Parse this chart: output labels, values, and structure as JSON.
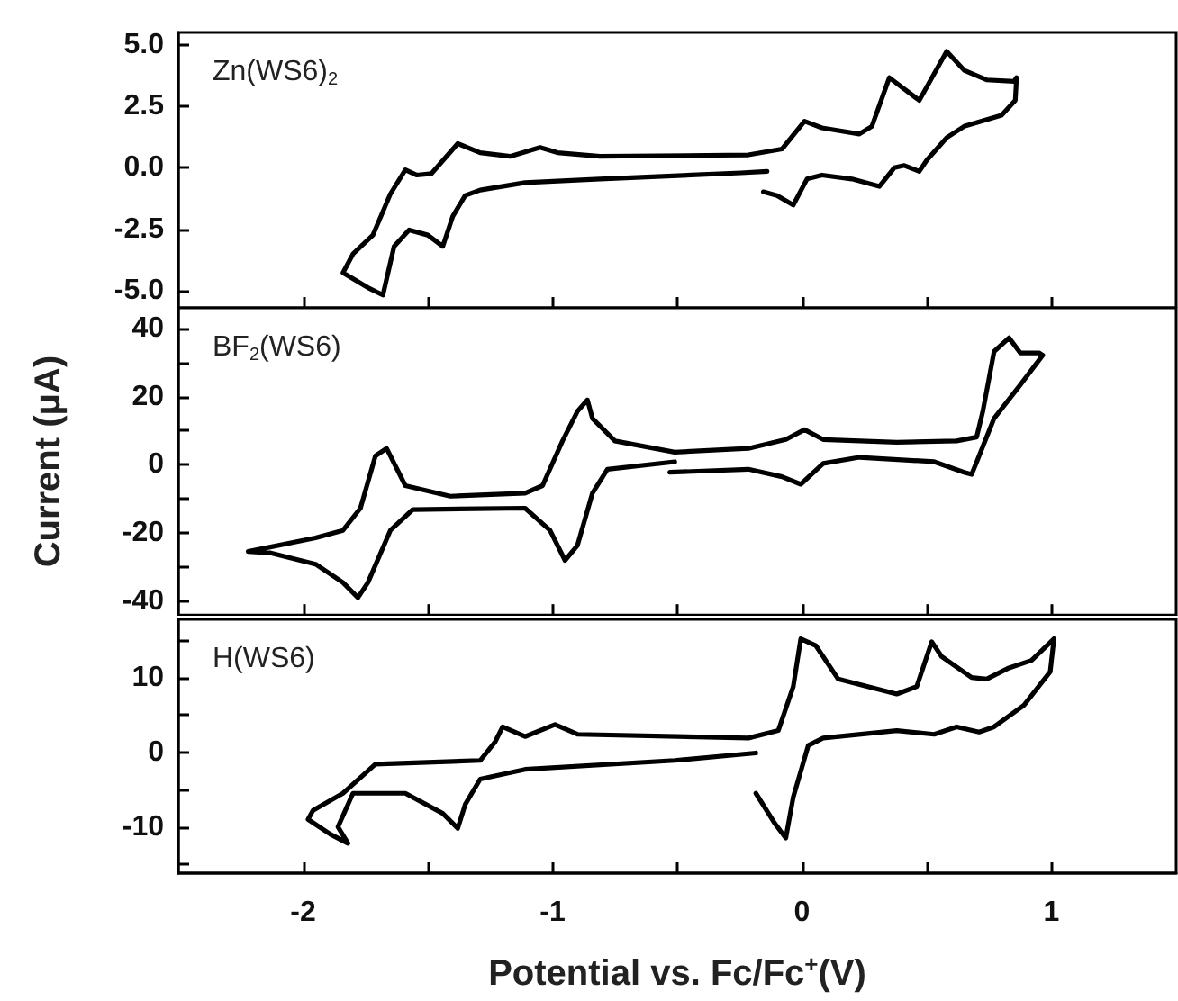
{
  "chart_data": [
    {
      "type": "line",
      "xlim": [
        -2.5,
        1.5
      ],
      "xticks": [
        -2,
        -1,
        0,
        1,
        {
          "value": -1.5,
          "label": null
        },
        {
          "value": -0.5,
          "label": null
        },
        {
          "value": 0.5,
          "label": null
        }
      ],
      "ylim": [
        -5.7,
        5.5
      ],
      "yticks": [
        {
          "value": -5,
          "label": "-5.0"
        },
        {
          "value": -2.5,
          "label": "-2.5"
        },
        {
          "value": 0,
          "label": "0.0"
        },
        {
          "value": 2.5,
          "label": "2.5"
        },
        {
          "value": 5,
          "label": "5.0"
        }
      ],
      "tick_labels": "y",
      "series": [
        {
          "name": "Zn(WS6)$_{2}$",
          "color": "#000000",
          "x": [
            -0.14,
            -0.245,
            -0.81,
            -1.11,
            -1.29,
            -1.35,
            -1.4,
            -1.44,
            -1.5,
            -1.575,
            -1.635,
            -1.68,
            -1.74,
            -1.84,
            -1.8,
            -1.72,
            -1.65,
            -1.59,
            -1.545,
            -1.485,
            -1.38,
            -1.29,
            -1.17,
            -1.05,
            -0.98,
            -0.81,
            -0.215,
            -0.08,
            0.01,
            0.08,
            0.23,
            0.28,
            0.35,
            0.41,
            0.47,
            0.58,
            0.65,
            0.74,
            0.85,
            0.86,
            0.855,
            0.8,
            0.65,
            0.58,
            0.5,
            0.47,
            0.41,
            0.37,
            0.31,
            0.2,
            0.08,
            0.02,
            -0.035,
            -0.1,
            -0.155
          ],
          "values": [
            -0.15,
            -0.21,
            -0.46,
            -0.61,
            -0.91,
            -1.13,
            -1.98,
            -3.2,
            -2.74,
            -2.53,
            -3.2,
            -5.18,
            -4.88,
            -4.27,
            -3.51,
            -2.74,
            -1.07,
            -0.09,
            -0.3,
            -0.24,
            0.98,
            0.61,
            0.46,
            0.82,
            0.61,
            0.46,
            0.52,
            0.76,
            1.89,
            1.62,
            1.37,
            1.68,
            3.66,
            3.2,
            2.74,
            4.73,
            3.96,
            3.57,
            3.51,
            3.66,
            2.74,
            2.13,
            1.68,
            1.22,
            0.3,
            -0.15,
            0.09,
            0,
            -0.76,
            -0.46,
            -0.3,
            -0.46,
            -1.52,
            -1.13,
            -0.98
          ]
        }
      ]
    },
    {
      "type": "line",
      "ylabel": "Current (μA)",
      "xlim": [
        -2.5,
        1.5
      ],
      "xticks": [
        -2,
        -1,
        0,
        1,
        {
          "value": -1.5,
          "label": null
        },
        {
          "value": -0.5,
          "label": null
        },
        {
          "value": 0.5,
          "label": null
        }
      ],
      "ylim": [
        -44,
        46
      ],
      "yticks": [
        -40,
        -20,
        0,
        20,
        40,
        {
          "value": -30,
          "label": null
        },
        {
          "value": -10,
          "label": null
        },
        {
          "value": 10,
          "label": null
        },
        {
          "value": 30,
          "label": null
        }
      ],
      "tick_labels": "y",
      "series": [
        {
          "name": "BF$_{2}$(WS6)",
          "color": "#000000",
          "x": [
            -0.53,
            -0.215,
            -0.08,
            -0.005,
            0.085,
            0.23,
            0.53,
            0.65,
            0.68,
            0.71,
            0.77,
            0.875,
            0.965,
            0.95,
            0.875,
            0.83,
            0.77,
            0.725,
            0.7,
            0.62,
            0.38,
            0.085,
            0.01,
            -0.065,
            -0.215,
            -0.51,
            -0.75,
            -0.84,
            -0.86,
            -0.9,
            -0.96,
            -1.04,
            -1.11,
            -1.41,
            -1.59,
            -1.665,
            -1.71,
            -1.77,
            -1.84,
            -1.95,
            -2.22,
            -2.13,
            -1.95,
            -1.84,
            -1.78,
            -1.74,
            -1.65,
            -1.56,
            -1.11,
            -1.01,
            -0.95,
            -0.9,
            -0.84,
            -0.78,
            -0.51
          ],
          "values": [
            -2.2,
            -1.3,
            -3.5,
            -5.7,
            0.4,
            2.2,
            0.9,
            -2.2,
            -2.8,
            2.6,
            13.6,
            23.4,
            32.1,
            32.8,
            32.8,
            37.2,
            33.2,
            15.7,
            8.1,
            7,
            6.6,
            7.4,
            10.3,
            7.4,
            4.8,
            3.7,
            7,
            13.6,
            19,
            15.7,
            7,
            -6.1,
            -8.3,
            -9.2,
            -6.1,
            4.8,
            2.6,
            -12.7,
            -19.2,
            -21.4,
            -25.4,
            -25.8,
            -29.1,
            -34.5,
            -38.9,
            -34.5,
            -19.2,
            -13.1,
            -12.7,
            -19.2,
            -28,
            -23.6,
            -8.3,
            -1.3,
            0.9
          ]
        }
      ]
    },
    {
      "type": "line",
      "xlabel": "Potential vs. Fc/Fc$^{+}$(V)",
      "xlim": [
        -2.5,
        1.5
      ],
      "xticks": [
        -2,
        -1,
        0,
        1,
        {
          "value": -1.5,
          "label": null
        },
        {
          "value": -0.5,
          "label": null
        },
        {
          "value": 0.5,
          "label": null
        }
      ],
      "ylim": [
        -16.2,
        17.8
      ],
      "yticks": [
        -10,
        0,
        10,
        {
          "value": -15,
          "label": null
        },
        {
          "value": -5,
          "label": null
        },
        {
          "value": 5,
          "label": null
        },
        {
          "value": 15,
          "label": null
        }
      ],
      "series": [
        {
          "name": "H(WS6)",
          "color": "#000000",
          "x": [
            -0.185,
            -0.51,
            -1.11,
            -1.29,
            -1.35,
            -1.38,
            -1.44,
            -1.59,
            -1.8,
            -1.86,
            -1.82,
            -1.89,
            -1.98,
            -1.96,
            -1.84,
            -1.71,
            -1.29,
            -1.23,
            -1.2,
            -1.11,
            -0.99,
            -0.9,
            -0.215,
            -0.095,
            -0.035,
            -0.005,
            0.055,
            0.145,
            0.38,
            0.46,
            0.52,
            0.56,
            0.68,
            0.74,
            0.83,
            0.92,
            1.01,
            0.995,
            0.89,
            0.77,
            0.71,
            0.62,
            0.53,
            0.38,
            0.085,
            0.025,
            -0.035,
            -0.065,
            -0.11,
            -0.185
          ],
          "values": [
            -0.1,
            -1.1,
            -2.3,
            -3.6,
            -7,
            -10.2,
            -8.2,
            -5.5,
            -5.5,
            -10,
            -12.2,
            -11,
            -9,
            -7.8,
            -5.5,
            -1.6,
            -1.1,
            1.4,
            3.4,
            2.1,
            3.7,
            2.4,
            1.9,
            2.9,
            8.8,
            15.2,
            14.3,
            9.8,
            7.8,
            8.8,
            14.8,
            12.8,
            10,
            9.8,
            11.3,
            12.3,
            15.2,
            10.8,
            6.3,
            3.4,
            2.7,
            3.4,
            2.4,
            2.9,
            1.9,
            0.9,
            -6,
            -11.5,
            -9.5,
            -5.5
          ]
        }
      ]
    }
  ]
}
